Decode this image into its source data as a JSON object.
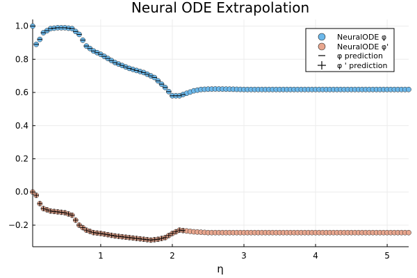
{
  "chart_data": {
    "type": "scatter",
    "title": "Neural ODE Extrapolation",
    "xlabel": "η",
    "ylabel": "",
    "xlim": [
      0.05,
      5.3
    ],
    "ylim": [
      -0.33,
      1.04
    ],
    "xticks": [
      1,
      2,
      3,
      4,
      5
    ],
    "yticks": [
      -0.2,
      0.0,
      0.2,
      0.4,
      0.6,
      0.8,
      1.0
    ],
    "ytick_labels": [
      "−0.2",
      "0.0",
      "0.2",
      "0.4",
      "0.6",
      "0.8",
      "1.0"
    ],
    "grid": true,
    "legend_position": "top-right",
    "legend": [
      "NeuralODE φ",
      "NeuralODE φ'",
      "φ prediction",
      "φ ' prediction"
    ],
    "colors": {
      "phi": "#6cb8ea",
      "dphi": "#e8a68e",
      "marker_edge": "#222222",
      "prediction": "#000000",
      "grid": "#ececec"
    },
    "training_end": 2.15,
    "phi_curve": {
      "x": [
        0.05,
        0.1,
        0.15,
        0.2,
        0.3,
        0.4,
        0.5,
        0.6,
        0.7,
        0.8,
        0.9,
        1.0,
        1.2,
        1.4,
        1.6,
        1.75,
        1.9,
        2.0,
        2.1,
        2.2,
        2.3,
        2.4,
        2.5,
        2.6,
        2.8,
        3.0,
        5.3
      ],
      "y": [
        1.0,
        0.89,
        0.92,
        0.96,
        0.985,
        0.99,
        0.99,
        0.985,
        0.95,
        0.88,
        0.85,
        0.83,
        0.78,
        0.745,
        0.72,
        0.69,
        0.63,
        0.58,
        0.58,
        0.595,
        0.61,
        0.618,
        0.62,
        0.621,
        0.62,
        0.618,
        0.618
      ]
    },
    "dphi_curve": {
      "x": [
        0.05,
        0.1,
        0.15,
        0.2,
        0.3,
        0.4,
        0.5,
        0.6,
        0.7,
        0.8,
        0.9,
        1.0,
        1.2,
        1.4,
        1.6,
        1.7,
        1.8,
        1.9,
        2.0,
        2.1,
        2.2,
        2.3,
        2.5,
        2.7,
        3.0,
        5.3
      ],
      "y": [
        0.0,
        -0.02,
        -0.07,
        -0.1,
        -0.115,
        -0.12,
        -0.125,
        -0.14,
        -0.2,
        -0.23,
        -0.245,
        -0.25,
        -0.265,
        -0.275,
        -0.285,
        -0.29,
        -0.285,
        -0.275,
        -0.25,
        -0.23,
        -0.235,
        -0.24,
        -0.245,
        -0.245,
        -0.245,
        -0.245
      ]
    },
    "x_step": 0.05
  }
}
